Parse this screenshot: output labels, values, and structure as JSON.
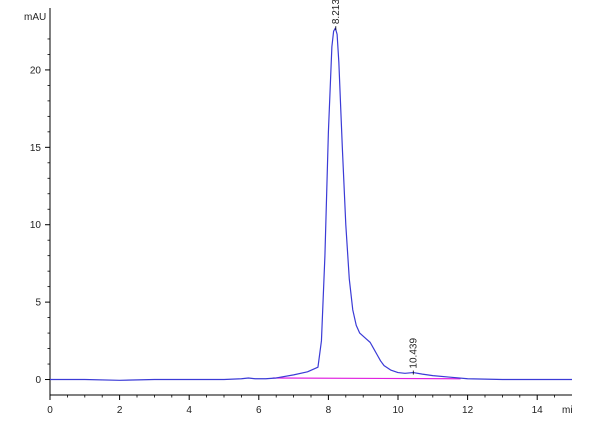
{
  "chart_data": {
    "type": "line",
    "title": "",
    "ylabel": "mAU",
    "xlabel": "mi",
    "xlim": [
      0,
      15
    ],
    "ylim": [
      -1,
      24
    ],
    "x_ticks": [
      0,
      2,
      4,
      6,
      8,
      10,
      12,
      14
    ],
    "y_ticks": [
      0,
      5,
      10,
      15,
      20
    ],
    "grid": false,
    "colors": {
      "trace": "#3b3bd6",
      "baseline": "#e020e0",
      "axis": "#000000"
    },
    "series": [
      {
        "values_note_free": true,
        "x": [
          0,
          1,
          2,
          3,
          4,
          5,
          5.5,
          5.7,
          5.9,
          6.2,
          6.5,
          7.0,
          7.4,
          7.7,
          7.8,
          7.9,
          8.0,
          8.1,
          8.15,
          8.2,
          8.25,
          8.3,
          8.4,
          8.5,
          8.6,
          8.7,
          8.8,
          8.9,
          9.0,
          9.1,
          9.2,
          9.3,
          9.4,
          9.5,
          9.6,
          9.8,
          10.0,
          10.2,
          10.44,
          10.7,
          11.0,
          11.5,
          12.0,
          13.0,
          14.0,
          15.0
        ],
        "y": [
          0,
          0,
          -0.05,
          0,
          0,
          0,
          0.05,
          0.1,
          0.05,
          0.05,
          0.1,
          0.3,
          0.5,
          0.8,
          2.5,
          8.0,
          16.0,
          21.5,
          22.5,
          22.7,
          22.3,
          20.5,
          15.0,
          10.0,
          6.5,
          4.5,
          3.5,
          3.0,
          2.8,
          2.6,
          2.4,
          2.0,
          1.6,
          1.2,
          0.9,
          0.6,
          0.45,
          0.4,
          0.45,
          0.35,
          0.25,
          0.15,
          0.05,
          0,
          0,
          0
        ]
      }
    ],
    "baseline": {
      "x": [
        6.4,
        11.8
      ],
      "y": [
        0.1,
        0.05
      ]
    },
    "peaks": [
      {
        "rt_label": "8.213",
        "x": 8.213,
        "y": 22.7
      },
      {
        "rt_label": "10.439",
        "x": 10.439,
        "y": 0.45
      }
    ]
  }
}
